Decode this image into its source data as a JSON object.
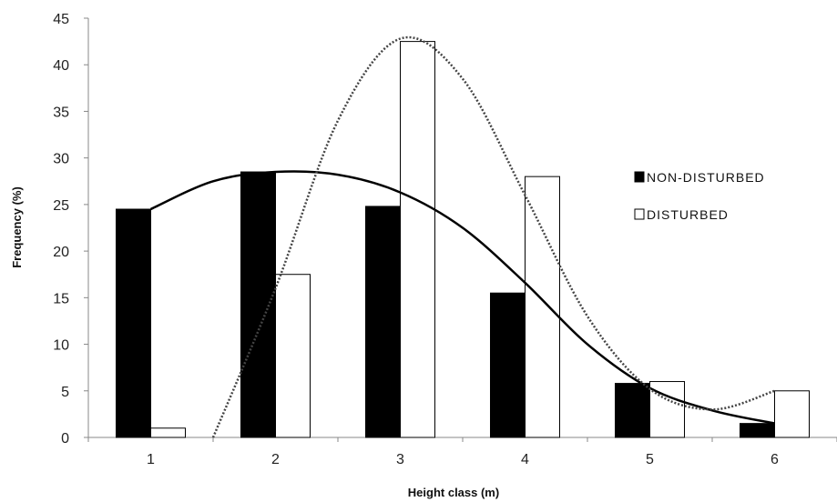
{
  "chart_data": {
    "type": "bar",
    "xlabel": "Height class (m)",
    "ylabel": "Frequency (%)",
    "ylim": [
      0,
      45
    ],
    "yticks": [
      0,
      5,
      10,
      15,
      20,
      25,
      30,
      35,
      40,
      45
    ],
    "categories": [
      "1",
      "2",
      "3",
      "4",
      "5",
      "6"
    ],
    "grid": false,
    "legend_position": "right",
    "series": [
      {
        "name": "NON-DISTURBED",
        "values": [
          24.5,
          28.5,
          24.8,
          15.5,
          5.8,
          1.5
        ],
        "color": "#000000",
        "fit_curve": {
          "style": "solid",
          "points": [
            [
              1,
              24.5
            ],
            [
              1.5,
              27.5
            ],
            [
              2,
              28.5
            ],
            [
              2.5,
              28.2
            ],
            [
              3,
              26.3
            ],
            [
              3.5,
              22.5
            ],
            [
              4,
              16.6
            ],
            [
              4.5,
              10.0
            ],
            [
              5,
              5.3
            ],
            [
              5.5,
              2.9
            ],
            [
              6,
              1.5
            ]
          ]
        }
      },
      {
        "name": "DISTURBED",
        "values": [
          1.0,
          17.5,
          42.5,
          28.0,
          6.0,
          5.0
        ],
        "color": "#ffffff",
        "fit_curve": {
          "style": "dotted",
          "points": [
            [
              1.5,
              0.0
            ],
            [
              2,
              16.0
            ],
            [
              2.5,
              34.0
            ],
            [
              3,
              42.8
            ],
            [
              3.5,
              38.5
            ],
            [
              4,
              26.0
            ],
            [
              4.5,
              13.0
            ],
            [
              5,
              5.2
            ],
            [
              5.5,
              3.0
            ],
            [
              6,
              5.0
            ]
          ]
        }
      }
    ]
  }
}
